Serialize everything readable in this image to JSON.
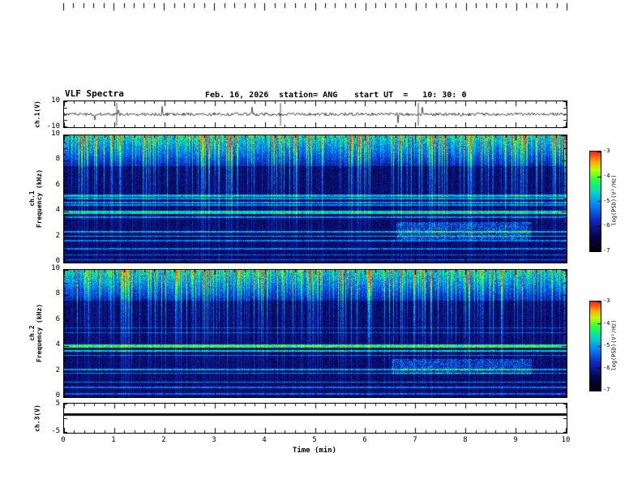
{
  "header": {
    "title": "VLF Spectra",
    "date": "Feb. 16, 2026",
    "station": "station= ANG",
    "start_ut": "start UT  =   10: 30: 0"
  },
  "axes": {
    "xlabel": "Time (min)",
    "xlim": [
      0,
      10
    ],
    "xticks": [
      "0",
      "1",
      "2",
      "3",
      "4",
      "5",
      "6",
      "7",
      "8",
      "9",
      "10"
    ]
  },
  "panels": {
    "ch1v": {
      "label": "ch.1(V)",
      "ylim": [
        -10,
        10
      ],
      "ytick_labels": [
        "10",
        "-10"
      ]
    },
    "spec1": {
      "label_line1": "ch.1",
      "label_line2": "Frequency (kHz)",
      "yticks": [
        10,
        8,
        6,
        4,
        2,
        0
      ],
      "ytick_labels": [
        "10",
        "8",
        "6",
        "4",
        "2",
        "0"
      ]
    },
    "spec2": {
      "label_line1": "ch.2",
      "label_line2": "Frequency (kHz)",
      "yticks": [
        10,
        8,
        6,
        4,
        2,
        0
      ],
      "ytick_labels": [
        "10",
        "8",
        "6",
        "4",
        "2",
        "0"
      ]
    },
    "ch3v": {
      "label": "ch.3(V)",
      "ylim": [
        -5,
        5
      ],
      "ytick_labels": [
        "5",
        "-5"
      ]
    }
  },
  "colorbar": {
    "label": "log(PSD)(V²/Hz)",
    "ticks": [
      "-3",
      "-4",
      "-5",
      "-6",
      "-7"
    ]
  },
  "chart_data": {
    "type": "multi-panel",
    "title": "VLF Spectra",
    "date": "Feb. 16, 2026",
    "station": "ANG",
    "start_ut": "10:30:0",
    "xlabel": "Time (min)",
    "xlim_min": [
      0,
      10
    ],
    "panels": [
      {
        "type": "line",
        "name": "ch.1(V)",
        "ylim_V": [
          -10,
          10
        ],
        "signal": "broadband noise of ~±2 V around 0 with impulsive sferic spikes",
        "spike_times_min": [
          1.05,
          4.3,
          7.05
        ]
      },
      {
        "type": "heatmap",
        "name": "ch.1 spectrogram",
        "ylim_kHz": [
          0,
          10
        ],
        "color_scale_log_psd": [
          -7,
          -3
        ],
        "features": {
          "dense_emission_above_kHz": 7.6,
          "vertical_sferic_streaks": true,
          "bands_kHz": [
            {
              "f": 5.3,
              "w": 0.1,
              "a": 0.42
            },
            {
              "f": 5.05,
              "w": 0.07,
              "a": 0.38
            },
            {
              "f": 4.75,
              "w": 0.07,
              "a": 0.36
            },
            {
              "f": 4.55,
              "w": 0.06,
              "a": 0.33
            },
            {
              "f": 4.0,
              "w": 0.12,
              "a": 0.5
            },
            {
              "f": 3.6,
              "w": 0.06,
              "a": 0.33
            },
            {
              "f": 2.45,
              "w": 0.06,
              "a": 0.38
            },
            {
              "f": 2.1,
              "w": 0.06,
              "a": 0.4
            },
            {
              "f": 1.75,
              "w": 0.05,
              "a": 0.33
            },
            {
              "f": 1.1,
              "w": 0.05,
              "a": 0.33
            },
            {
              "f": 0.65,
              "w": 0.05,
              "a": 0.28
            },
            {
              "f": 0.25,
              "w": 0.05,
              "a": 0.28
            }
          ],
          "diffuse_patch": {
            "x0_min": 6.6,
            "x1_min": 9.3,
            "f0_kHz": 1.8,
            "f1_kHz": 3.2,
            "a": 0.3
          }
        }
      },
      {
        "type": "heatmap",
        "name": "ch.2 spectrogram",
        "ylim_kHz": [
          0,
          10
        ],
        "color_scale_log_psd": [
          -7,
          -3
        ],
        "features": {
          "dense_emission_above_kHz": 7.6,
          "vertical_sferic_streaks": true,
          "bands_kHz": [
            {
              "f": 4.05,
              "w": 0.14,
              "a": 0.6
            },
            {
              "f": 3.65,
              "w": 0.08,
              "a": 0.48
            },
            {
              "f": 3.3,
              "w": 0.05,
              "a": 0.3
            },
            {
              "f": 5.5,
              "w": 0.04,
              "a": 0.22
            },
            {
              "f": 5.1,
              "w": 0.05,
              "a": 0.24
            },
            {
              "f": 2.2,
              "w": 0.06,
              "a": 0.38
            },
            {
              "f": 1.9,
              "w": 0.05,
              "a": 0.34
            },
            {
              "f": 1.2,
              "w": 0.05,
              "a": 0.33
            },
            {
              "f": 0.8,
              "w": 0.05,
              "a": 0.3
            },
            {
              "f": 0.3,
              "w": 0.05,
              "a": 0.28
            }
          ],
          "diffuse_patch": {
            "x0_min": 6.5,
            "x1_min": 9.3,
            "f0_kHz": 1.8,
            "f1_kHz": 3.0,
            "a": 0.28
          }
        }
      },
      {
        "type": "line",
        "name": "ch.3(V)",
        "ylim_V": [
          -5,
          5
        ],
        "constant_value_V": 1.5
      }
    ]
  }
}
